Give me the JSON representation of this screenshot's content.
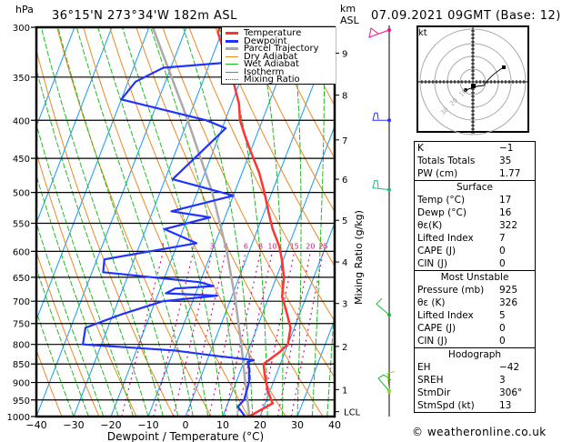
{
  "header": {
    "pressure_unit": "hPa",
    "location": "36°15'N  273°34'W  182m  ASL",
    "km_label": "km",
    "asl_label": "ASL",
    "datetime": "07.09.2021  09GMT  (Base: 12)"
  },
  "chart_data": {
    "type": "line",
    "title": "36°15'N 273°34'W 182m ASL",
    "xlabel": "Dewpoint / Temperature (°C)",
    "ylabel": "hPa",
    "right_label": "Mixing Ratio (g/kg)",
    "xlim": [
      -40,
      40
    ],
    "ylim_hpa": [
      1000,
      300
    ],
    "x_ticks": [
      "-40",
      "-30",
      "-20",
      "-10",
      "0",
      "10",
      "20",
      "30",
      "40"
    ],
    "x_tick_values": [
      -40,
      -30,
      -20,
      -10,
      0,
      10,
      20,
      30,
      40
    ],
    "pressure_levels": [
      300,
      350,
      400,
      450,
      500,
      550,
      600,
      650,
      700,
      750,
      800,
      850,
      900,
      950,
      1000
    ],
    "km_ticks": [
      {
        "label": "1",
        "p": 920
      },
      {
        "label": "2",
        "p": 805
      },
      {
        "label": "3",
        "p": 705
      },
      {
        "label": "4",
        "p": 620
      },
      {
        "label": "5",
        "p": 545
      },
      {
        "label": "6",
        "p": 480
      },
      {
        "label": "7",
        "p": 425
      },
      {
        "label": "8",
        "p": 370
      },
      {
        "label": "9",
        "p": 325
      }
    ],
    "lcl_label": "LCL",
    "lcl_hpa": 985,
    "mixing_ratio_labels": [
      "1",
      "2",
      "3",
      "4",
      "6",
      "8",
      "10",
      "15",
      "20",
      "25"
    ],
    "mixing_ratio_values": [
      1,
      2,
      3,
      4,
      6,
      8,
      10,
      15,
      20,
      25
    ],
    "legend": [
      {
        "label": "Temperature",
        "color": "#ff3333"
      },
      {
        "label": "Dewpoint",
        "color": "#2233ff"
      },
      {
        "label": "Parcel Trajectory",
        "color": "#aaaaaa"
      },
      {
        "label": "Dry Adiabat",
        "color": "#ee8822"
      },
      {
        "label": "Wet Adiabat",
        "color": "#22bb22"
      },
      {
        "label": "Isotherm",
        "color": "#1199ff"
      },
      {
        "label": "Mixing Ratio",
        "color": "#dd1188"
      }
    ],
    "legend_position": "top-right",
    "series": [
      {
        "name": "Temperature",
        "points": [
          [
            1000,
            17
          ],
          [
            960,
            22
          ],
          [
            925,
            19.5
          ],
          [
            880,
            17
          ],
          [
            850,
            15.5
          ],
          [
            820,
            18.5
          ],
          [
            800,
            20
          ],
          [
            760,
            19
          ],
          [
            720,
            16
          ],
          [
            690,
            13.5
          ],
          [
            650,
            12
          ],
          [
            620,
            10
          ],
          [
            590,
            7.5
          ],
          [
            560,
            4
          ],
          [
            530,
            1
          ],
          [
            500,
            -2
          ],
          [
            470,
            -5.5
          ],
          [
            440,
            -10
          ],
          [
            420,
            -13
          ],
          [
            400,
            -16
          ],
          [
            380,
            -18
          ],
          [
            360,
            -21
          ],
          [
            340,
            -24
          ],
          [
            320,
            -28
          ],
          [
            305,
            -31
          ],
          [
            300,
            -31
          ]
        ]
      },
      {
        "name": "Dewpoint",
        "points": [
          [
            1000,
            16
          ],
          [
            970,
            13
          ],
          [
            950,
            14
          ],
          [
            900,
            13.5
          ],
          [
            860,
            12
          ],
          [
            845,
            11
          ],
          [
            840,
            12.5
          ],
          [
            830,
            3
          ],
          [
            815,
            -10
          ],
          [
            800,
            -35
          ],
          [
            760,
            -36
          ],
          [
            730,
            -28
          ],
          [
            700,
            -18
          ],
          [
            688,
            -4
          ],
          [
            683,
            -18
          ],
          [
            673,
            -16
          ],
          [
            668,
            -6
          ],
          [
            660,
            -10
          ],
          [
            640,
            -37
          ],
          [
            615,
            -38
          ],
          [
            585,
            -15
          ],
          [
            560,
            -25
          ],
          [
            540,
            -14
          ],
          [
            530,
            -25
          ],
          [
            505,
            -10
          ],
          [
            480,
            -28
          ],
          [
            440,
            -23
          ],
          [
            410,
            -19
          ],
          [
            400,
            -25
          ],
          [
            375,
            -50
          ],
          [
            355,
            -48
          ],
          [
            340,
            -42
          ],
          [
            330,
            -11
          ],
          [
            320,
            -6
          ],
          [
            310,
            -8
          ],
          [
            300,
            -17
          ]
        ]
      },
      {
        "name": "Parcel Trajectory",
        "points": [
          [
            1000,
            17
          ],
          [
            985,
            16.5
          ],
          [
            900,
            12.5
          ],
          [
            800,
            7.5
          ],
          [
            700,
            1.5
          ],
          [
            600,
            -6
          ],
          [
            500,
            -16
          ],
          [
            400,
            -30
          ],
          [
            300,
            -49
          ]
        ]
      }
    ],
    "winds": [
      {
        "p": 1000,
        "color": "#11bb33"
      },
      {
        "p": 900,
        "color": "#99dd22"
      },
      {
        "p": 700,
        "color": "#11bb33"
      },
      {
        "p": 500,
        "color": "#11bb88"
      },
      {
        "p": 400,
        "color": "#2233ff"
      },
      {
        "p": 300,
        "color": "#ee1188"
      }
    ]
  },
  "hodograph": {
    "unit_label": "kt",
    "ring_labels": [
      "10",
      "20",
      "30"
    ]
  },
  "indices": {
    "rows": [
      {
        "label": "K",
        "value": "-1"
      },
      {
        "label": "Totals Totals",
        "value": "35"
      },
      {
        "label": "PW (cm)",
        "value": "1.77"
      }
    ]
  },
  "surface": {
    "title": "Surface",
    "rows": [
      {
        "label": "Temp (°C)",
        "value": "17"
      },
      {
        "label": "Dewp (°C)",
        "value": "16"
      },
      {
        "label": "θε(K)",
        "value": "322"
      },
      {
        "label": "Lifted Index",
        "value": "7"
      },
      {
        "label": "CAPE (J)",
        "value": "0"
      },
      {
        "label": "CIN (J)",
        "value": "0"
      }
    ]
  },
  "most_unstable": {
    "title": "Most Unstable",
    "rows": [
      {
        "label": "Pressure (mb)",
        "value": "925"
      },
      {
        "label": "θε (K)",
        "value": "326"
      },
      {
        "label": "Lifted Index",
        "value": "5"
      },
      {
        "label": "CAPE (J)",
        "value": "0"
      },
      {
        "label": "CIN (J)",
        "value": "0"
      }
    ]
  },
  "hodograph_stats": {
    "title": "Hodograph",
    "rows": [
      {
        "label": "EH",
        "value": "-42"
      },
      {
        "label": "SREH",
        "value": "3"
      },
      {
        "label": "StmDir",
        "value": "306°"
      },
      {
        "label": "StmSpd (kt)",
        "value": "13"
      }
    ]
  },
  "footer": {
    "copyright": "© weatheronline.co.uk"
  }
}
